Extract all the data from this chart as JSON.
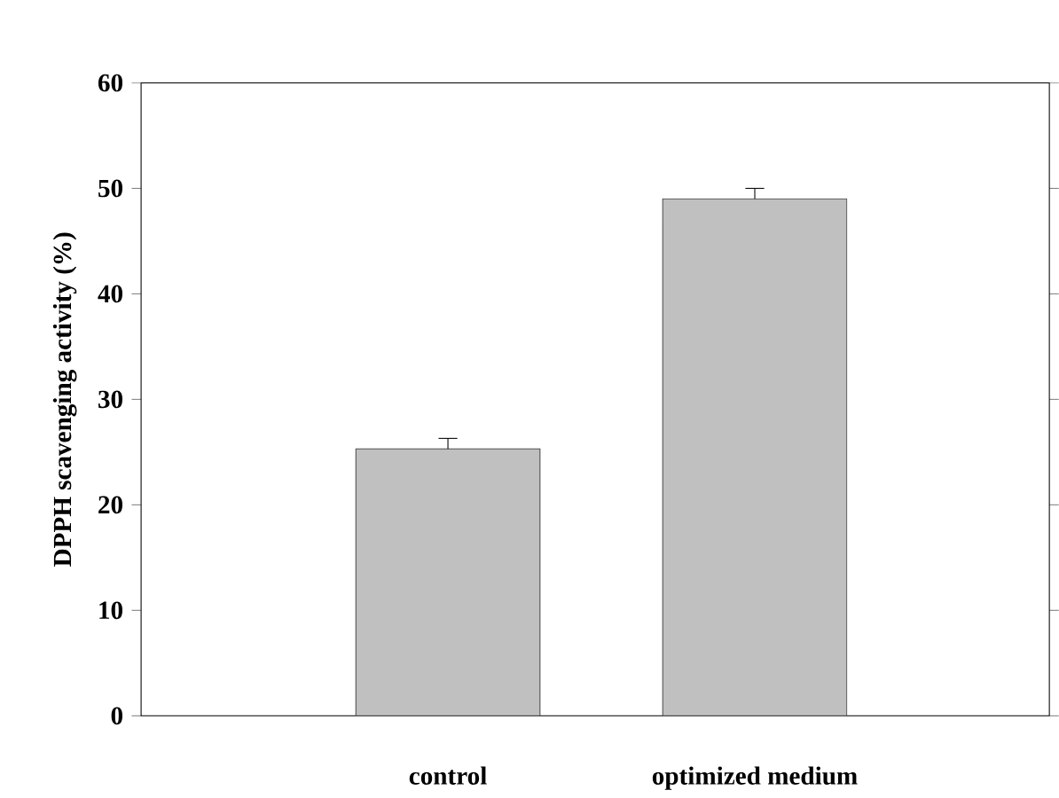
{
  "chart_data": {
    "type": "bar",
    "ylabel": "DPPH scavenging activity (%)",
    "categories": [
      "control",
      "optimized medium"
    ],
    "values": [
      25.3,
      49.0
    ],
    "errors": [
      1.0,
      1.0
    ],
    "color": "#c0c0c0",
    "ylim": [
      0,
      60
    ],
    "yticks": [
      0,
      10,
      20,
      30,
      40,
      50,
      60
    ],
    "grid": false
  }
}
